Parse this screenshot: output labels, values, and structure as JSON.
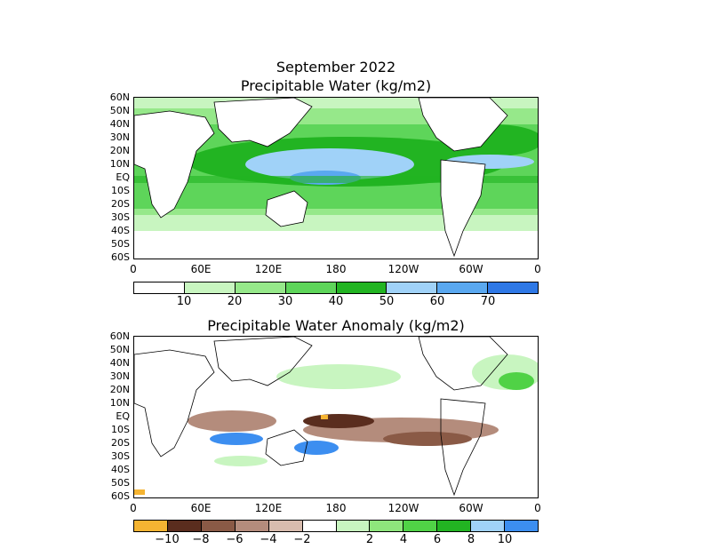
{
  "header": {
    "title_line1": "September 2022",
    "title_line2": "Precipitable Water (kg/m2)"
  },
  "panel2": {
    "title": "Precipitable Water Anomaly (kg/m2)"
  },
  "lat_labels": [
    "60N",
    "50N",
    "40N",
    "30N",
    "20N",
    "10N",
    "EQ",
    "10S",
    "20S",
    "30S",
    "40S",
    "50S",
    "60S"
  ],
  "lon_labels": [
    "0",
    "60E",
    "120E",
    "180",
    "120W",
    "60W",
    "0"
  ],
  "colorbar1": {
    "colors": [
      "#ffffff",
      "#c8f5c0",
      "#96e88a",
      "#5ed55a",
      "#22b422",
      "#a0d2f8",
      "#5aa8f0",
      "#2e78e6"
    ],
    "labels": [
      "10",
      "20",
      "30",
      "40",
      "50",
      "60",
      "70"
    ]
  },
  "colorbar2": {
    "colors": [
      "#f5b432",
      "#5a2d1e",
      "#8a5a46",
      "#b48c7c",
      "#d8bcae",
      "#ffffff",
      "#c8f5c0",
      "#8ee67c",
      "#50d246",
      "#22b422",
      "#a0d2f8",
      "#3c8ef0"
    ],
    "labels": [
      "−10",
      "−8",
      "−6",
      "−4",
      "−2",
      "2",
      "4",
      "6",
      "8",
      "10"
    ]
  }
}
